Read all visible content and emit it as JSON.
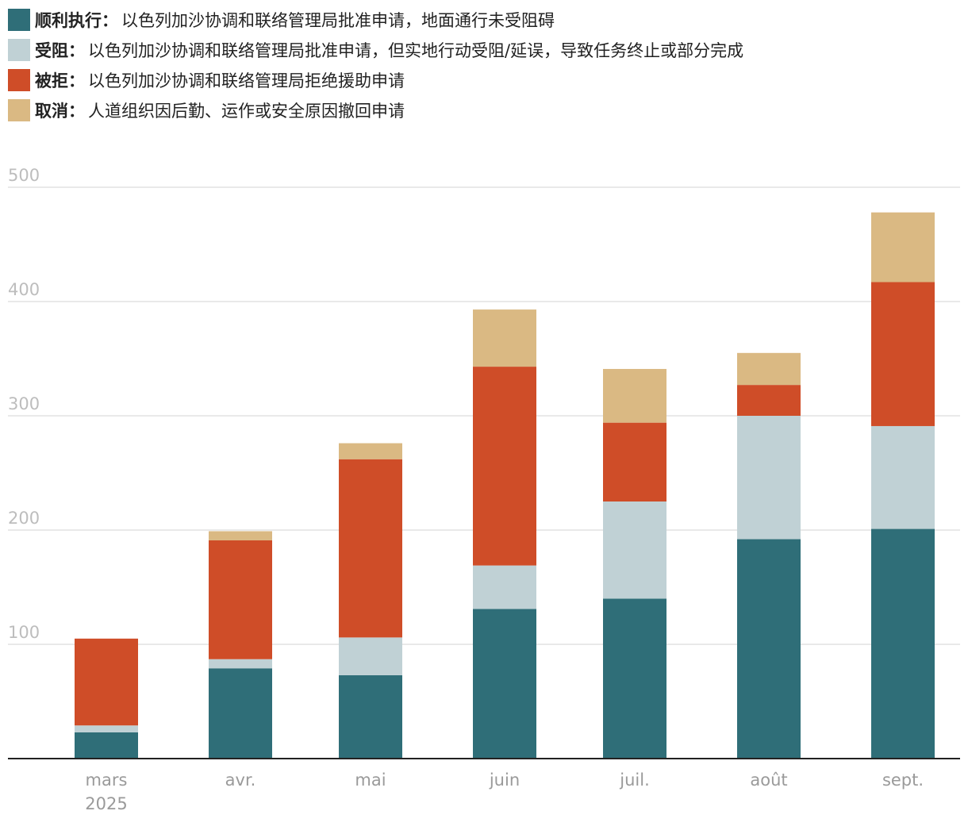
{
  "legend": [
    {
      "label": "顺利执行：",
      "desc": "以色列加沙协调和联络管理局批准申请，地面通行未受阻碍",
      "color": "#2f6e78"
    },
    {
      "label": "受阻：",
      "desc": "以色列加沙协调和联络管理局批准申请，但实地行动受阻/延误，导致任务终止或部分完成",
      "color": "#c0d1d5"
    },
    {
      "label": "被拒：",
      "desc": " 以色列加沙协调和联络管理局拒绝援助申请",
      "color": "#cf4d28"
    },
    {
      "label": "取消：",
      "desc": " 人道组织因后勤、运作或安全原因撤回申请",
      "color": "#dab983"
    }
  ],
  "chart_data": {
    "type": "bar",
    "stacked": true,
    "categories": [
      "mars",
      "avr.",
      "mai",
      "juin",
      "juil.",
      "août",
      "sept."
    ],
    "category_sublabels": [
      "2025",
      "",
      "",
      "",
      "",
      "",
      ""
    ],
    "yticks": [
      "100",
      "200",
      "300",
      "400",
      "500"
    ],
    "ylim": [
      0,
      500
    ],
    "series": [
      {
        "name": "顺利执行",
        "color": "#2f6e78",
        "values": [
          23,
          79,
          73,
          131,
          140,
          192,
          201
        ]
      },
      {
        "name": "受阻",
        "color": "#c0d1d5",
        "values": [
          6,
          8,
          33,
          38,
          85,
          108,
          90
        ]
      },
      {
        "name": "被拒",
        "color": "#cf4d28",
        "values": [
          76,
          104,
          156,
          174,
          69,
          27,
          126
        ]
      },
      {
        "name": "取消",
        "color": "#dab983",
        "values": [
          0,
          8,
          14,
          50,
          47,
          28,
          61
        ]
      }
    ]
  }
}
